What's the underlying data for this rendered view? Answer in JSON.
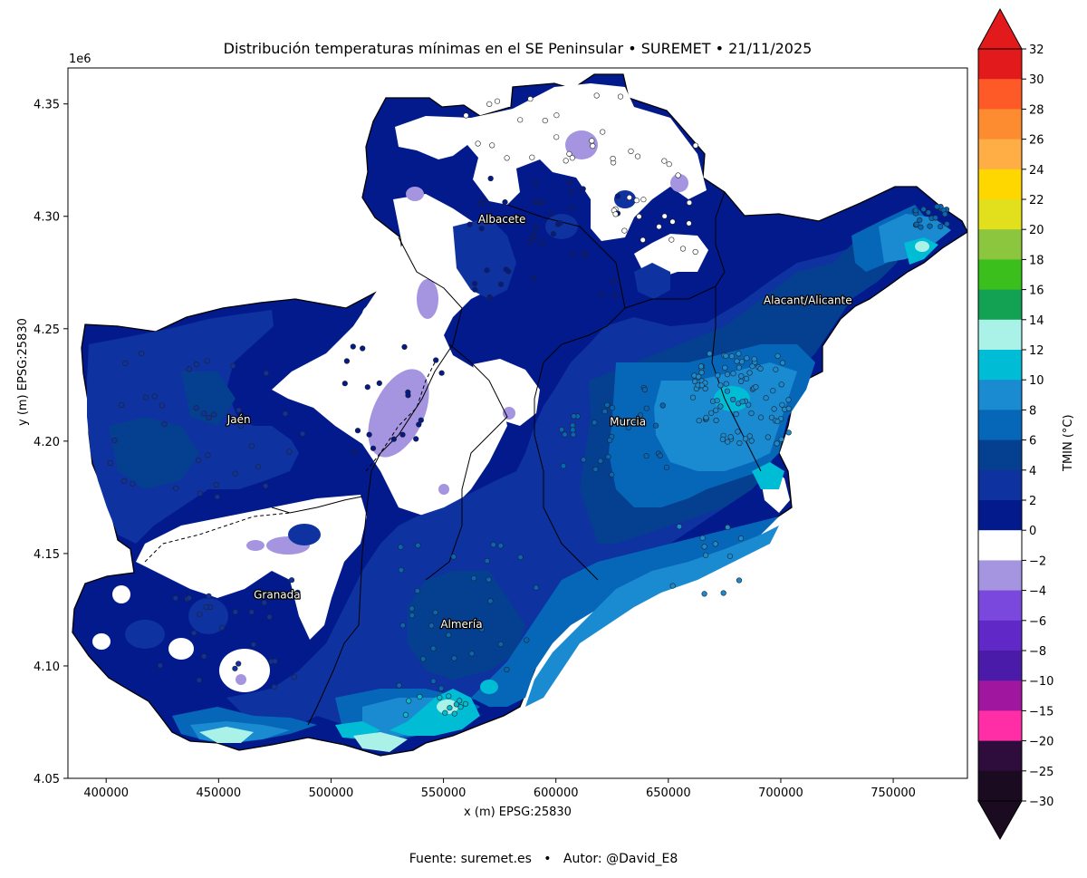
{
  "title": "Distribución temperaturas mínimas en el SE Peninsular • SUREMET • 21/11/2025",
  "axes": {
    "xlabel": "x (m) EPSG:25830",
    "ylabel": "y (m) EPSG:25830",
    "y_offset_label": "1e6",
    "x_ticks": [
      "400000",
      "450000",
      "500000",
      "550000",
      "600000",
      "650000",
      "700000",
      "750000"
    ],
    "y_ticks": [
      "4.05",
      "4.10",
      "4.15",
      "4.20",
      "4.25",
      "4.30",
      "4.35"
    ],
    "xlim": [
      383000,
      783000
    ],
    "ylim": [
      4050000,
      4366000
    ]
  },
  "colorbar": {
    "label": "TMIN (°C)",
    "ticks": [
      "32",
      "30",
      "28",
      "26",
      "24",
      "22",
      "20",
      "18",
      "16",
      "14",
      "12",
      "10",
      "8",
      "6",
      "4",
      "2",
      "0",
      "−2",
      "−4",
      "−6",
      "−8",
      "−10",
      "−15",
      "−20",
      "−25",
      "−30"
    ],
    "colors": [
      "#e31a1c",
      "#fd5a28",
      "#fd8b30",
      "#feae45",
      "#fed700",
      "#e2e01c",
      "#8cc63f",
      "#3bbf1c",
      "#13a154",
      "#aaf2e8",
      "#00bcd4",
      "#1a8ad1",
      "#0667b9",
      "#053f8f",
      "#0e32a0",
      "#021a8c",
      "#ffffff",
      "#a594e0",
      "#7a48dd",
      "#6128c8",
      "#4a1aa8",
      "#a0169e",
      "#ff2ea6",
      "#2e0c3c",
      "#1a0b20"
    ],
    "top_extend_color": "#e31a1c",
    "bottom_extend_color": "#1a0b20"
  },
  "places": [
    {
      "name": "Albacete",
      "x": 576000,
      "y": 4297000
    },
    {
      "name": "Alacant/Alicante",
      "x": 712000,
      "y": 4261000
    },
    {
      "name": "Jaén",
      "x": 459000,
      "y": 4208000
    },
    {
      "name": "Murcia",
      "x": 632000,
      "y": 4207000
    },
    {
      "name": "Granada",
      "x": 476000,
      "y": 4130000
    },
    {
      "name": "Almería",
      "x": 558000,
      "y": 4117000
    }
  ],
  "footer": "Fuente: suremet.es   •   Autor: @David_E8",
  "colors": {
    "sea_background": "#ffffff",
    "province_border": "#000000",
    "station_marker_edge": "#222222"
  }
}
